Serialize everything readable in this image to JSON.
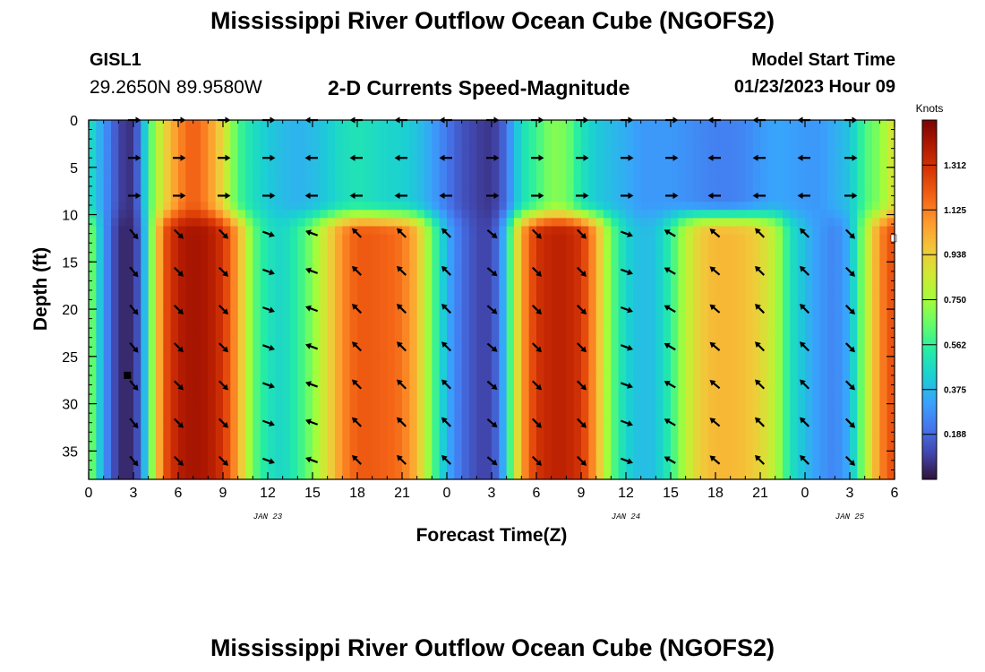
{
  "header": {
    "title": "Mississippi River Outflow Ocean Cube (NGOFS2)",
    "station_name": "GISL1",
    "station_coords": "29.2650N  89.9580W",
    "product_title": "2-D Currents Speed-Magnitude",
    "model_start_label": "Model Start Time",
    "model_start_value": "01/23/2023 Hour 09"
  },
  "footer": {
    "title": "Mississippi River Outflow Ocean Cube (NGOFS2)"
  },
  "colors": {
    "colormap": [
      "#30123b",
      "#4145ab",
      "#4675ed",
      "#39a2fc",
      "#1bcfd4",
      "#24eca6",
      "#61fc6c",
      "#a4fc3b",
      "#d1e834",
      "#f3c63a",
      "#fe9b2d",
      "#f36315",
      "#d93806",
      "#b11901",
      "#7a0403"
    ],
    "background": "#ffffff",
    "axis": "#000000"
  },
  "chart_data": {
    "type": "heatmap",
    "title": "2-D Currents Speed-Magnitude",
    "xlabel": "Forecast Time(Z)",
    "ylabel": "Depth (ft)",
    "x_unit": "hours from 00Z Jan 23",
    "xlim": [
      0,
      54
    ],
    "ylim": [
      0,
      38
    ],
    "x_ticks": [
      0,
      3,
      6,
      9,
      12,
      15,
      18,
      21,
      24,
      27,
      30,
      33,
      36,
      39,
      42,
      45,
      48,
      51,
      54
    ],
    "x_tick_labels": [
      "0",
      "3",
      "6",
      "9",
      "12",
      "15",
      "18",
      "21",
      "0",
      "3",
      "6",
      "9",
      "12",
      "15",
      "18",
      "21",
      "0",
      "3",
      "6"
    ],
    "y_ticks": [
      0,
      5,
      10,
      15,
      20,
      25,
      30,
      35
    ],
    "y_tick_labels": [
      "0",
      "5",
      "10",
      "15",
      "20",
      "25",
      "30",
      "35"
    ],
    "date_labels": [
      {
        "x": 12,
        "text": "JAN 23"
      },
      {
        "x": 36,
        "text": "JAN 24"
      },
      {
        "x": 51,
        "text": "JAN 25"
      }
    ],
    "colorbar": {
      "label": "Knots",
      "min": 0,
      "max": 1.5,
      "ticks": [
        0.188,
        0.375,
        0.562,
        0.75,
        0.938,
        1.125,
        1.312
      ],
      "tick_labels": [
        "0.188",
        "0.375",
        "0.562",
        "0.750",
        "0.938",
        "1.125",
        "1.312"
      ]
    },
    "speed_profile": {
      "hours": [
        0,
        1,
        2,
        2.5,
        3,
        3.5,
        4,
        5,
        6,
        7,
        8,
        9,
        10,
        11,
        12,
        13,
        14,
        15,
        16,
        17,
        18,
        19,
        20,
        21,
        22,
        23,
        24,
        25,
        26,
        26.5,
        27,
        27.5,
        28,
        29,
        30,
        31,
        32,
        33,
        34,
        35,
        36,
        37,
        38,
        39,
        40,
        41,
        42,
        43,
        44,
        45,
        46,
        47,
        48,
        49,
        50,
        51,
        52,
        53,
        54
      ],
      "surface_knots": [
        0.5,
        0.3,
        0.12,
        0.06,
        0.08,
        0.25,
        0.58,
        0.9,
        1.1,
        1.2,
        1.1,
        0.9,
        0.6,
        0.48,
        0.42,
        0.38,
        0.36,
        0.38,
        0.42,
        0.48,
        0.5,
        0.48,
        0.45,
        0.44,
        0.4,
        0.32,
        0.22,
        0.14,
        0.1,
        0.08,
        0.08,
        0.12,
        0.22,
        0.48,
        0.58,
        0.7,
        0.68,
        0.5,
        0.42,
        0.38,
        0.35,
        0.3,
        0.3,
        0.3,
        0.28,
        0.26,
        0.24,
        0.24,
        0.26,
        0.3,
        0.33,
        0.32,
        0.3,
        0.3,
        0.35,
        0.4,
        0.6,
        0.7,
        0.9
      ],
      "deep_knots": [
        0.75,
        0.3,
        0.06,
        0.04,
        0.06,
        0.2,
        0.55,
        1.2,
        1.38,
        1.42,
        1.4,
        1.3,
        1.05,
        0.65,
        0.5,
        0.45,
        0.55,
        0.7,
        0.9,
        1.1,
        1.2,
        1.2,
        1.18,
        1.15,
        1.0,
        0.65,
        0.35,
        0.2,
        0.12,
        0.1,
        0.12,
        0.22,
        0.45,
        1.05,
        1.3,
        1.36,
        1.36,
        1.3,
        1.05,
        0.65,
        0.45,
        0.38,
        0.4,
        0.55,
        0.8,
        0.95,
        1.0,
        1.0,
        0.98,
        0.92,
        0.8,
        0.5,
        0.38,
        0.3,
        0.25,
        0.35,
        0.75,
        1.1,
        1.25
      ]
    },
    "vector_hours": [
      3,
      6,
      9,
      12,
      15,
      18,
      21,
      24,
      27,
      30,
      33,
      36,
      39,
      42,
      45,
      48,
      51
    ],
    "vector_depths": [
      0,
      4,
      8,
      12,
      16,
      20,
      24,
      28,
      32,
      36
    ],
    "vector_direction_deg": {
      "surface": [
        0,
        0,
        0,
        0,
        180,
        180,
        180,
        180,
        0,
        0,
        0,
        0,
        0,
        180,
        180,
        180,
        0
      ],
      "deep": [
        310,
        315,
        315,
        340,
        160,
        135,
        135,
        135,
        320,
        315,
        315,
        340,
        150,
        140,
        135,
        135,
        315
      ]
    },
    "markers": [
      {
        "type": "square",
        "x": 2.6,
        "y": 27
      },
      {
        "type": "square-white",
        "x": 54,
        "y": 12.5
      }
    ]
  }
}
